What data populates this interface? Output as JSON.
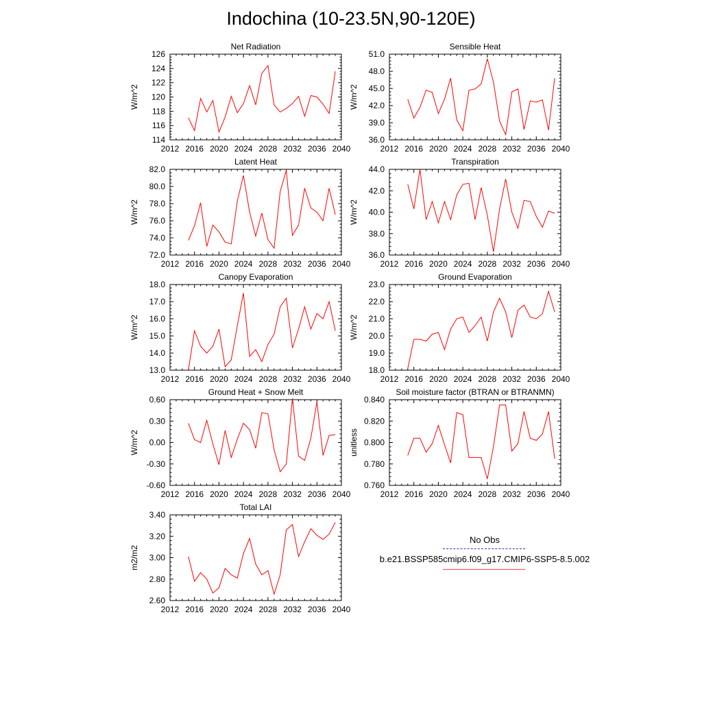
{
  "figure": {
    "title": "Indochina (10-23.5N,90-120E)"
  },
  "legend": [
    {
      "label": "No Obs",
      "color": "#3333aa",
      "style": "dashed"
    },
    {
      "label": "b.e21.BSSP585cmip6.f09_g17.CMIP6-SSP5-8.5.002",
      "color": "#ff0000",
      "style": "solid"
    }
  ],
  "chart_data": [
    {
      "type": "line",
      "title": "Net Radiation",
      "ylabel": "W/m^2",
      "xlim": [
        2012,
        2040
      ],
      "xticks": [
        "2012",
        "2016",
        "2020",
        "2024",
        "2028",
        "2032",
        "2036",
        "2040"
      ],
      "ylim": [
        114,
        126
      ],
      "yticks": [
        "114",
        "116",
        "118",
        "120",
        "122",
        "124",
        "126"
      ],
      "series": [
        {
          "color": "#ff0000",
          "x": [
            2015,
            2016,
            2017,
            2018,
            2019,
            2020,
            2021,
            2022,
            2023,
            2024,
            2025,
            2026,
            2027,
            2028,
            2029,
            2030,
            2031,
            2032,
            2033,
            2034,
            2035,
            2036,
            2037,
            2038,
            2039
          ],
          "values": [
            117.1,
            115.3,
            119.8,
            117.9,
            119.5,
            115.1,
            117.2,
            120.1,
            117.8,
            119.1,
            121.6,
            118.9,
            123.3,
            124.4,
            118.9,
            117.9,
            118.4,
            119.1,
            120.1,
            117.3,
            120.2,
            120.0,
            119.0,
            117.7,
            123.6
          ]
        }
      ]
    },
    {
      "type": "line",
      "title": "Sensible Heat",
      "ylabel": "W/m^2",
      "xlim": [
        2012,
        2040
      ],
      "xticks": [
        "2012",
        "2016",
        "2020",
        "2024",
        "2028",
        "2032",
        "2036",
        "2040"
      ],
      "ylim": [
        36,
        51
      ],
      "yticks": [
        "36.0",
        "39.0",
        "42.0",
        "45.0",
        "48.0",
        "51.0"
      ],
      "series": [
        {
          "color": "#ff0000",
          "x": [
            2015,
            2016,
            2017,
            2018,
            2019,
            2020,
            2021,
            2022,
            2023,
            2024,
            2025,
            2026,
            2027,
            2028,
            2029,
            2030,
            2031,
            2032,
            2033,
            2034,
            2035,
            2036,
            2037,
            2038,
            2039
          ],
          "values": [
            43.1,
            39.8,
            41.7,
            44.7,
            44.3,
            40.6,
            43.1,
            46.8,
            39.5,
            37.6,
            44.7,
            44.9,
            45.8,
            50.2,
            46.1,
            39.3,
            36.9,
            44.4,
            44.9,
            37.8,
            42.8,
            42.6,
            43.0,
            37.7,
            46.8
          ]
        }
      ]
    },
    {
      "type": "line",
      "title": "Latent Heat",
      "ylabel": "W/m^2",
      "xlim": [
        2012,
        2040
      ],
      "xticks": [
        "2012",
        "2016",
        "2020",
        "2024",
        "2028",
        "2032",
        "2036",
        "2040"
      ],
      "ylim": [
        72,
        82
      ],
      "yticks": [
        "72.0",
        "74.0",
        "76.0",
        "78.0",
        "80.0",
        "82.0"
      ],
      "series": [
        {
          "color": "#ff0000",
          "x": [
            2015,
            2016,
            2017,
            2018,
            2019,
            2020,
            2021,
            2022,
            2023,
            2024,
            2025,
            2026,
            2027,
            2028,
            2029,
            2030,
            2031,
            2032,
            2033,
            2034,
            2035,
            2036,
            2037,
            2038,
            2039
          ],
          "values": [
            73.7,
            75.4,
            78.1,
            73.0,
            75.5,
            74.7,
            73.5,
            73.3,
            78.3,
            81.3,
            77.0,
            74.2,
            76.9,
            73.8,
            72.8,
            79.4,
            81.9,
            74.3,
            75.5,
            79.8,
            77.5,
            77.0,
            76.0,
            79.8,
            76.7
          ]
        }
      ]
    },
    {
      "type": "line",
      "title": "Transpiration",
      "ylabel": "W/m^2",
      "xlim": [
        2012,
        2040
      ],
      "xticks": [
        "2012",
        "2016",
        "2020",
        "2024",
        "2028",
        "2032",
        "2036",
        "2040"
      ],
      "ylim": [
        36,
        44
      ],
      "yticks": [
        "36.0",
        "38.0",
        "40.0",
        "42.0",
        "44.0"
      ],
      "series": [
        {
          "color": "#ff0000",
          "x": [
            2015,
            2016,
            2017,
            2018,
            2019,
            2020,
            2021,
            2022,
            2023,
            2024,
            2025,
            2026,
            2027,
            2028,
            2029,
            2030,
            2031,
            2032,
            2033,
            2034,
            2035,
            2036,
            2037,
            2038,
            2039
          ],
          "values": [
            42.6,
            40.3,
            44.0,
            39.3,
            41.0,
            39.0,
            41.0,
            39.3,
            41.6,
            42.6,
            42.7,
            39.3,
            42.3,
            39.7,
            36.3,
            40.3,
            43.1,
            40.0,
            38.5,
            41.1,
            41.0,
            39.6,
            38.6,
            40.1,
            39.9
          ]
        }
      ]
    },
    {
      "type": "line",
      "title": "Canopy Evaporation",
      "ylabel": "W/m^2",
      "xlim": [
        2012,
        2040
      ],
      "xticks": [
        "2012",
        "2016",
        "2020",
        "2024",
        "2028",
        "2032",
        "2036",
        "2040"
      ],
      "ylim": [
        13,
        18
      ],
      "yticks": [
        "13.0",
        "14.0",
        "15.0",
        "16.0",
        "17.0",
        "18.0"
      ],
      "series": [
        {
          "color": "#ff0000",
          "x": [
            2015,
            2016,
            2017,
            2018,
            2019,
            2020,
            2021,
            2022,
            2023,
            2024,
            2025,
            2026,
            2027,
            2028,
            2029,
            2030,
            2031,
            2032,
            2033,
            2034,
            2035,
            2036,
            2037,
            2038,
            2039
          ],
          "values": [
            13.0,
            15.3,
            14.4,
            14.0,
            14.4,
            15.4,
            13.2,
            13.6,
            15.6,
            17.5,
            13.8,
            14.2,
            13.5,
            14.5,
            15.1,
            16.7,
            17.2,
            14.3,
            15.4,
            16.7,
            15.4,
            16.3,
            16.0,
            17.0,
            15.3
          ]
        }
      ]
    },
    {
      "type": "line",
      "title": "Ground Evaporation",
      "ylabel": "W/m^2",
      "xlim": [
        2012,
        2040
      ],
      "xticks": [
        "2012",
        "2016",
        "2020",
        "2024",
        "2028",
        "2032",
        "2036",
        "2040"
      ],
      "ylim": [
        18,
        23
      ],
      "yticks": [
        "18.0",
        "19.0",
        "20.0",
        "21.0",
        "22.0",
        "23.0"
      ],
      "series": [
        {
          "color": "#ff0000",
          "x": [
            2015,
            2016,
            2017,
            2018,
            2019,
            2020,
            2021,
            2022,
            2023,
            2024,
            2025,
            2026,
            2027,
            2028,
            2029,
            2030,
            2031,
            2032,
            2033,
            2034,
            2035,
            2036,
            2037,
            2038,
            2039
          ],
          "values": [
            18.1,
            19.8,
            19.8,
            19.7,
            20.1,
            20.2,
            19.2,
            20.4,
            21.0,
            21.1,
            20.2,
            20.6,
            21.1,
            19.7,
            21.4,
            22.2,
            21.4,
            19.9,
            21.5,
            21.8,
            21.1,
            21.0,
            21.3,
            22.6,
            21.4
          ]
        }
      ]
    },
    {
      "type": "line",
      "title": "Ground Heat + Snow Melt",
      "ylabel": "W/m^2",
      "xlim": [
        2012,
        2040
      ],
      "xticks": [
        "2012",
        "2016",
        "2020",
        "2024",
        "2028",
        "2032",
        "2036",
        "2040"
      ],
      "ylim": [
        -0.6,
        0.6
      ],
      "yticks": [
        "-0.60",
        "-0.30",
        "0.00",
        "0.30",
        "0.60"
      ],
      "series": [
        {
          "color": "#ff0000",
          "x": [
            2015,
            2016,
            2017,
            2018,
            2019,
            2020,
            2021,
            2022,
            2023,
            2024,
            2025,
            2026,
            2027,
            2028,
            2029,
            2030,
            2031,
            2032,
            2033,
            2034,
            2035,
            2036,
            2037,
            2038,
            2039
          ],
          "values": [
            0.27,
            0.04,
            0.0,
            0.31,
            -0.02,
            -0.31,
            0.17,
            -0.21,
            0.05,
            0.27,
            0.18,
            -0.08,
            0.42,
            0.4,
            -0.1,
            -0.41,
            -0.3,
            0.62,
            -0.19,
            -0.25,
            0.06,
            0.57,
            -0.18,
            0.1,
            0.11
          ]
        }
      ]
    },
    {
      "type": "line",
      "title": "Soil moisture factor (BTRAN or BTRANMN)",
      "ylabel": "unitless",
      "xlim": [
        2012,
        2040
      ],
      "xticks": [
        "2012",
        "2016",
        "2020",
        "2024",
        "2028",
        "2032",
        "2036",
        "2040"
      ],
      "ylim": [
        0.76,
        0.84
      ],
      "yticks": [
        "0.760",
        "0.780",
        "0.800",
        "0.820",
        "0.840"
      ],
      "series": [
        {
          "color": "#ff0000",
          "x": [
            2015,
            2016,
            2017,
            2018,
            2019,
            2020,
            2021,
            2022,
            2023,
            2024,
            2025,
            2026,
            2027,
            2028,
            2029,
            2030,
            2031,
            2032,
            2033,
            2034,
            2035,
            2036,
            2037,
            2038,
            2039
          ],
          "values": [
            0.788,
            0.804,
            0.804,
            0.791,
            0.799,
            0.816,
            0.798,
            0.781,
            0.828,
            0.826,
            0.786,
            0.786,
            0.786,
            0.766,
            0.796,
            0.835,
            0.835,
            0.792,
            0.799,
            0.829,
            0.804,
            0.802,
            0.808,
            0.829,
            0.785
          ]
        }
      ]
    },
    {
      "type": "line",
      "title": "Total LAI",
      "ylabel": "m2/m2",
      "xlim": [
        2012,
        2040
      ],
      "xticks": [
        "2012",
        "2016",
        "2020",
        "2024",
        "2028",
        "2032",
        "2036",
        "2040"
      ],
      "ylim": [
        2.6,
        3.4
      ],
      "yticks": [
        "2.60",
        "2.80",
        "3.00",
        "3.20",
        "3.40"
      ],
      "series": [
        {
          "color": "#ff0000",
          "x": [
            2015,
            2016,
            2017,
            2018,
            2019,
            2020,
            2021,
            2022,
            2023,
            2024,
            2025,
            2026,
            2027,
            2028,
            2029,
            2030,
            2031,
            2032,
            2033,
            2034,
            2035,
            2036,
            2037,
            2038,
            2039
          ],
          "values": [
            3.01,
            2.78,
            2.86,
            2.8,
            2.67,
            2.72,
            2.9,
            2.84,
            2.81,
            3.04,
            3.18,
            2.94,
            2.84,
            2.88,
            2.66,
            2.84,
            3.26,
            3.31,
            3.01,
            3.15,
            3.27,
            3.21,
            3.17,
            3.22,
            3.33
          ]
        }
      ]
    }
  ]
}
